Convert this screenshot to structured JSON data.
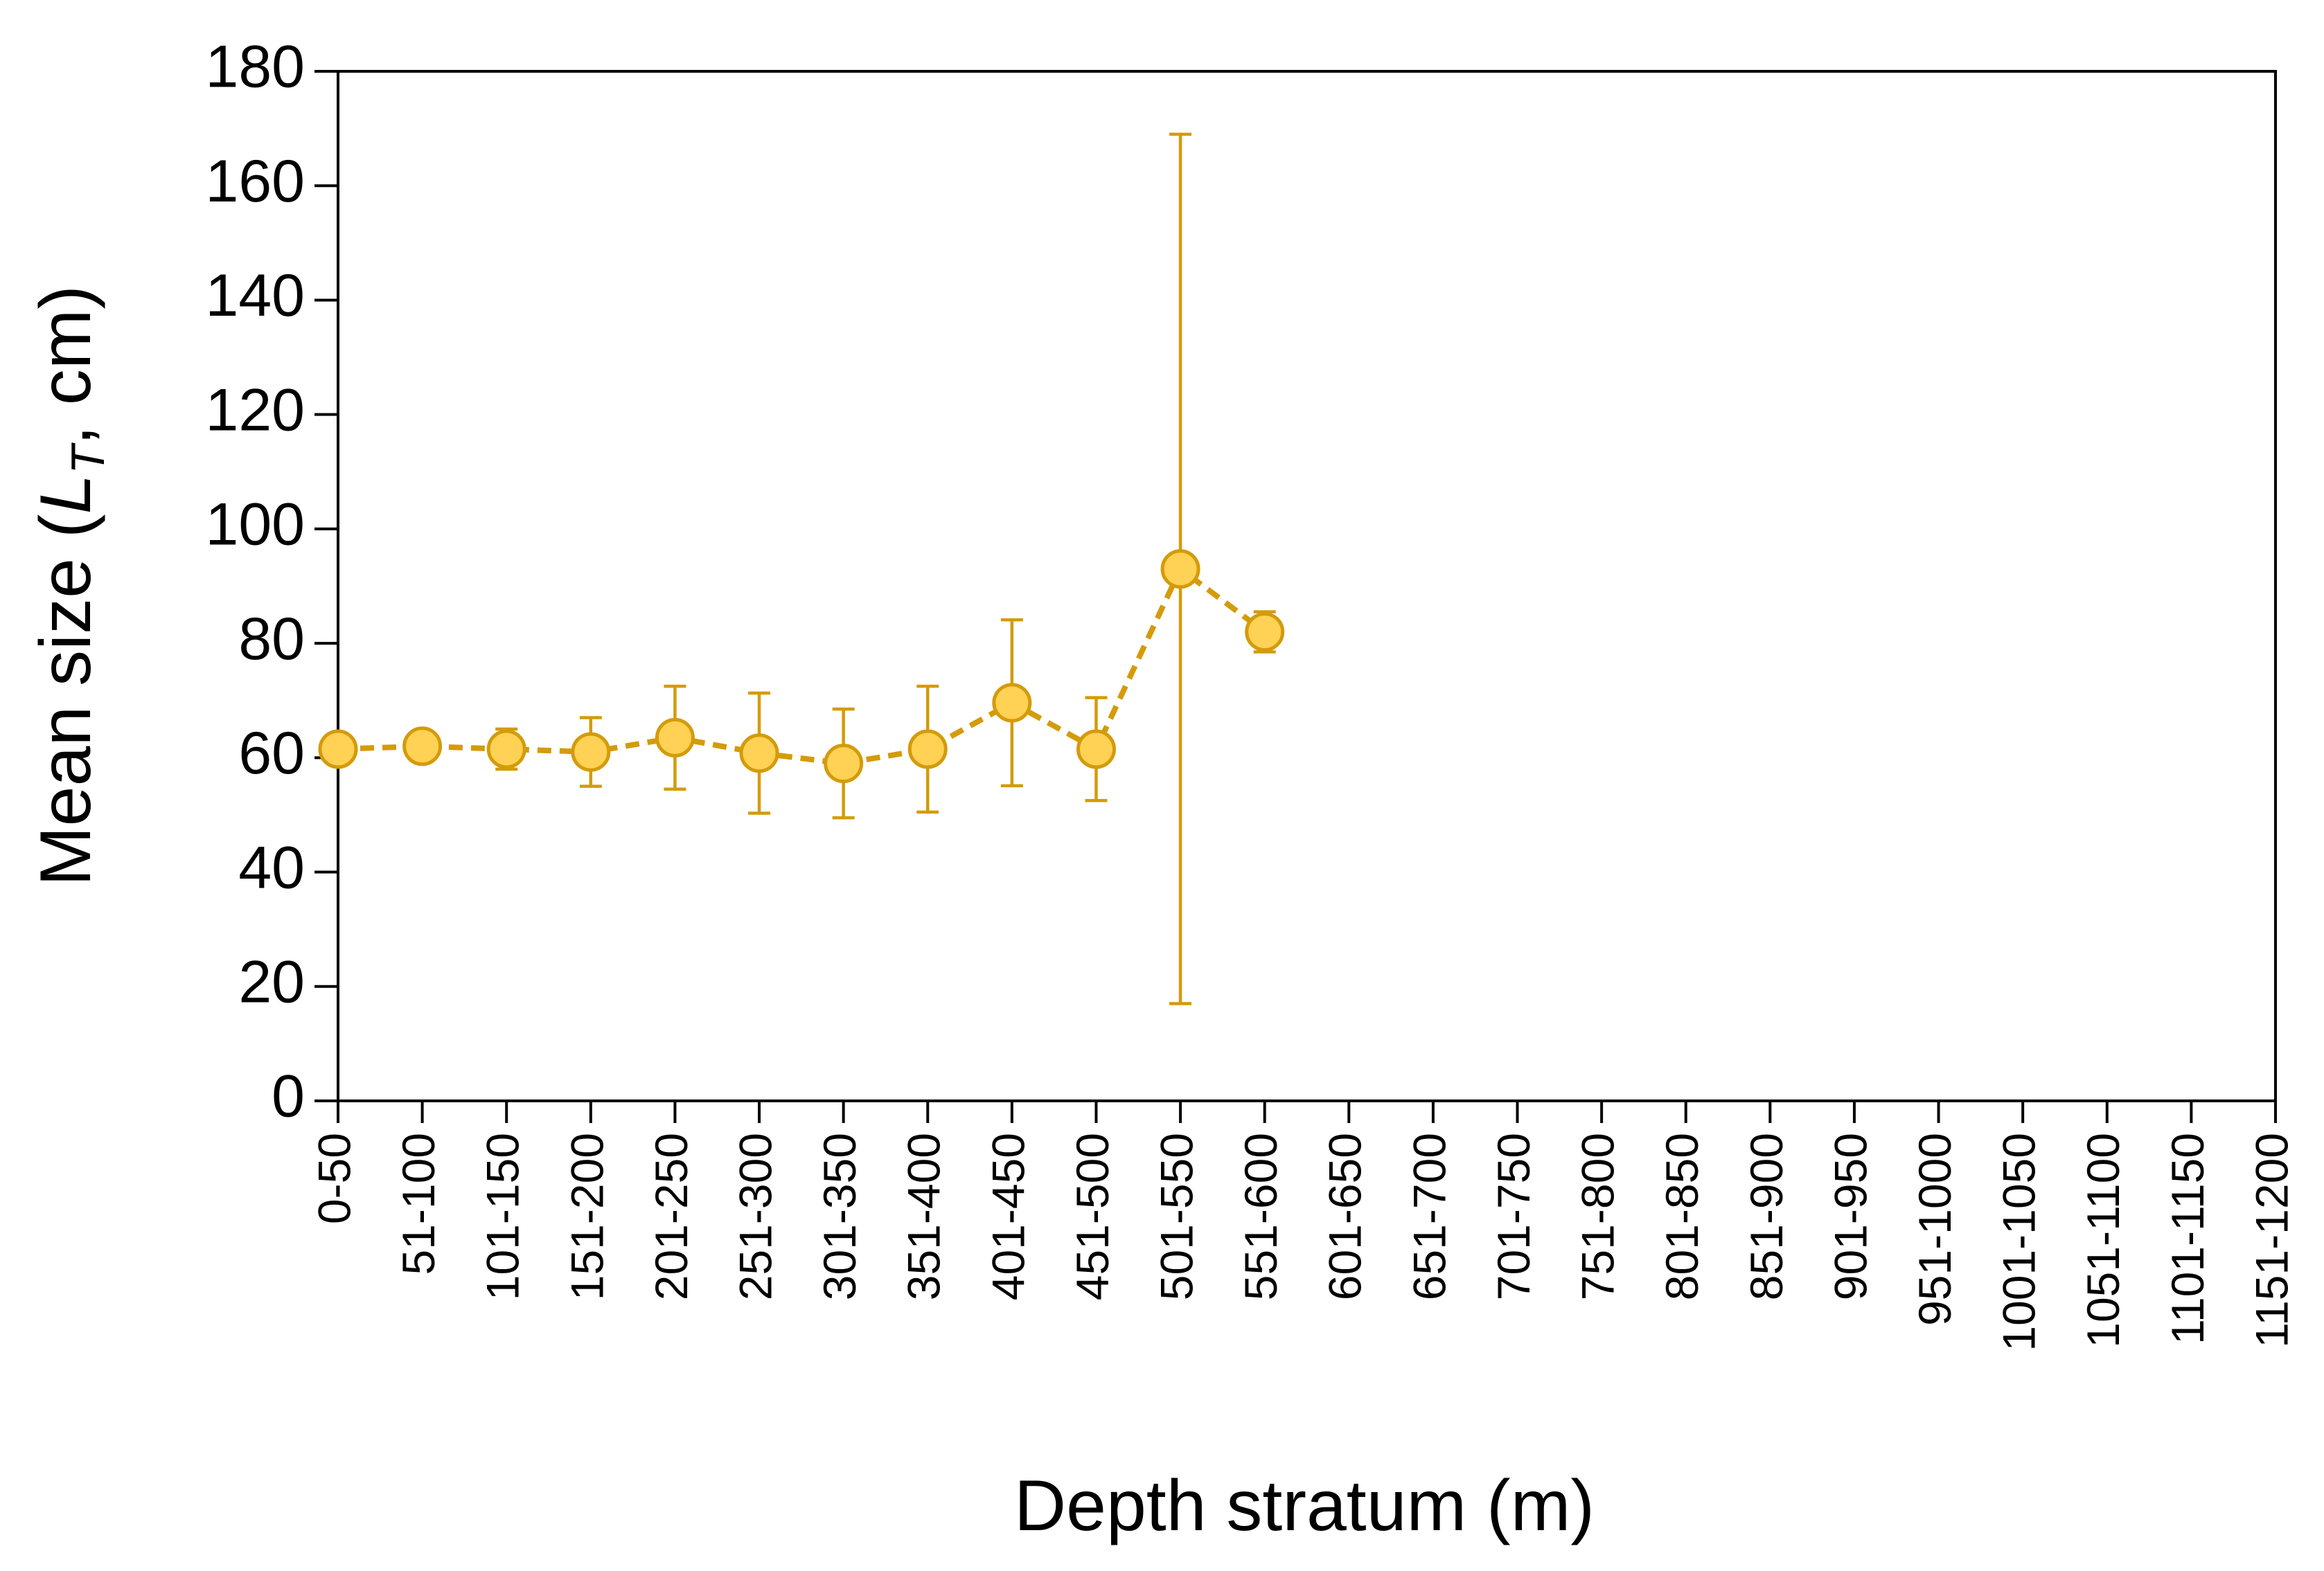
{
  "chart_data": {
    "type": "line",
    "x_label": "Depth stratum (m)",
    "y_label": [
      "Mean size (",
      "L",
      "T",
      ", cm)"
    ],
    "categories": [
      "0-50",
      "51-100",
      "101-150",
      "151-200",
      "201-250",
      "251-300",
      "301-350",
      "351-400",
      "401-450",
      "451-500",
      "501-550",
      "551-600",
      "601-650",
      "651-700",
      "701-750",
      "751-800",
      "801-850",
      "851-900",
      "901-950",
      "951-1000",
      "1001-1050",
      "1051-1100",
      "1101-1150",
      "1151-1200"
    ],
    "series": [
      {
        "color": "#D49B0A",
        "marker_fill": "#FFD154",
        "dashed": true,
        "values": [
          61.5,
          62,
          61.5,
          61,
          63.5,
          60.8,
          59,
          61.5,
          69.6,
          61.5,
          93,
          82,
          null,
          null,
          null,
          null,
          null,
          null,
          null,
          null,
          null,
          null,
          null,
          null
        ],
        "errors": [
          1,
          1,
          3.5,
          6,
          9,
          10.5,
          9.5,
          11,
          14.5,
          9,
          76,
          3.5,
          null,
          null,
          null,
          null,
          null,
          null,
          null,
          null,
          null,
          null,
          null,
          null
        ]
      }
    ],
    "ylim": [
      0,
      180
    ],
    "yticks": [
      0,
      20,
      40,
      60,
      80,
      100,
      120,
      140,
      160,
      180
    ],
    "grid": false
  }
}
